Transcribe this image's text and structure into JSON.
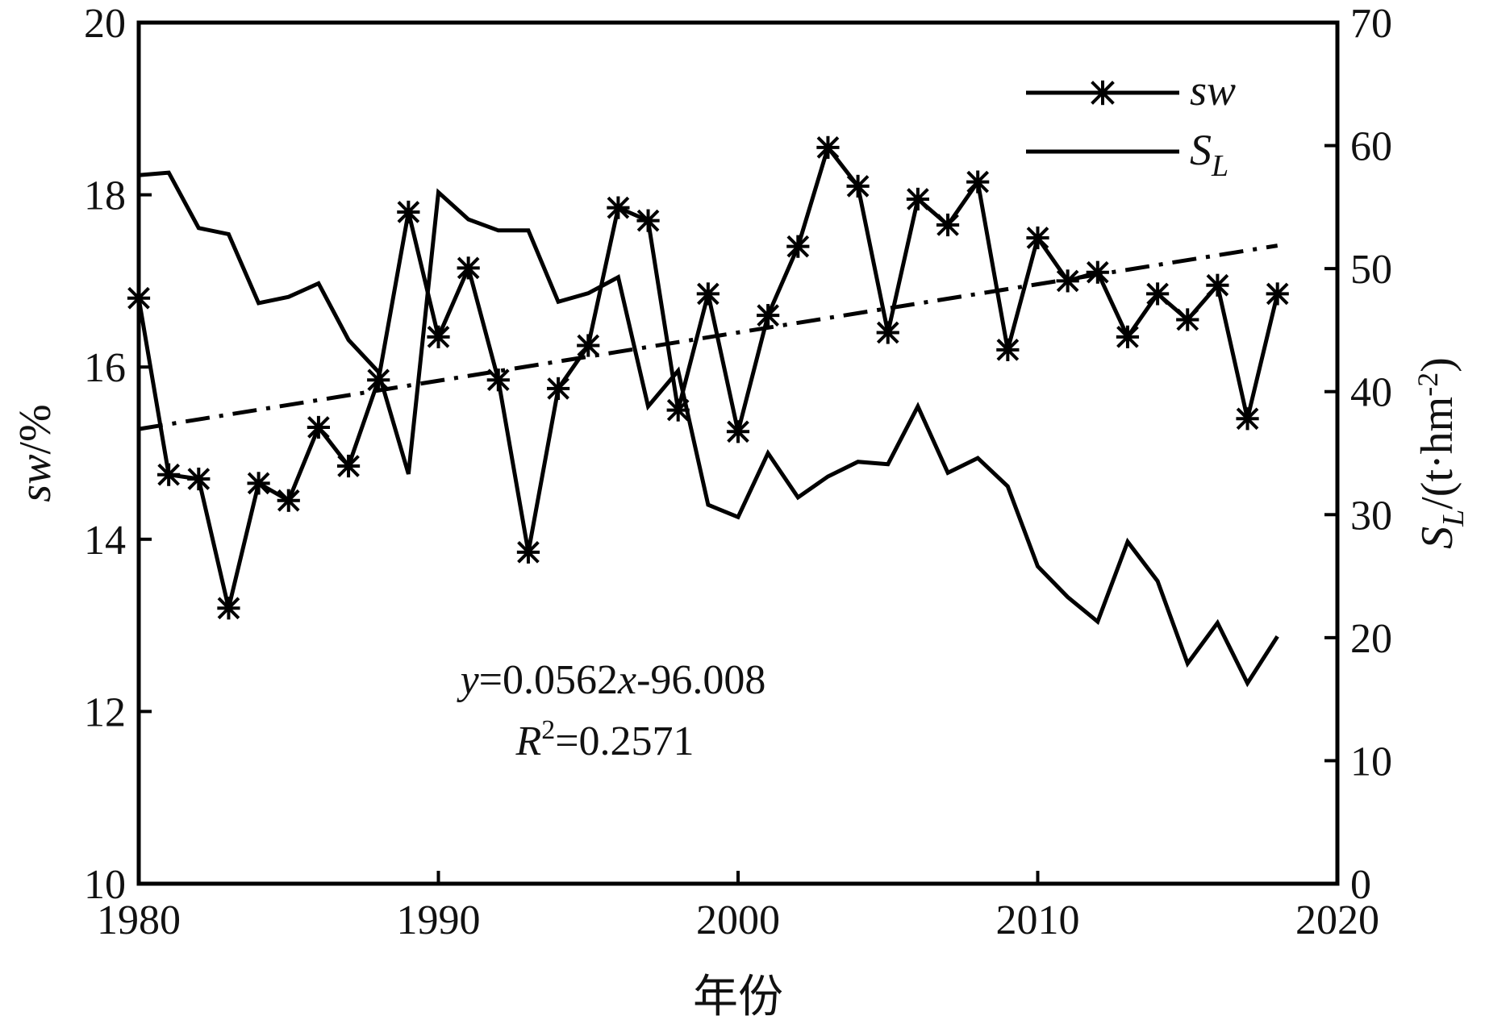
{
  "chart_data": {
    "type": "line",
    "xlabel": "年份",
    "ylabel_left": {
      "main": "sw",
      "rest": "/%"
    },
    "ylabel_right": {
      "main": "S",
      "sub": "L",
      "rest": "/(t·hm",
      "sup": "-2",
      "close": ")"
    },
    "xlim": [
      1980,
      2020
    ],
    "ylim_left": [
      10,
      20
    ],
    "ylim_right": [
      0,
      70
    ],
    "x_ticks": [
      "1980",
      "1990",
      "2000",
      "2010",
      "2020"
    ],
    "y_left_ticks": [
      "10",
      "12",
      "14",
      "16",
      "18",
      "20"
    ],
    "y_right_ticks": [
      "0",
      "10",
      "20",
      "30",
      "40",
      "50",
      "60",
      "70"
    ],
    "legend_position": "top-right",
    "legend": [
      {
        "label": "sw",
        "marker": "asterisk"
      },
      {
        "label": "S",
        "sub": "L",
        "marker": "none"
      }
    ],
    "series": [
      {
        "name": "sw",
        "axis": "left",
        "marker": "asterisk",
        "x": [
          1980,
          1981,
          1982,
          1983,
          1984,
          1985,
          1986,
          1987,
          1988,
          1989,
          1990,
          1991,
          1992,
          1993,
          1994,
          1995,
          1996,
          1997,
          1998,
          1999,
          2000,
          2001,
          2002,
          2003,
          2004,
          2005,
          2006,
          2007,
          2008,
          2009,
          2010,
          2011,
          2012,
          2013,
          2014,
          2015,
          2016,
          2017,
          2018
        ],
        "y": [
          16.8,
          14.75,
          14.7,
          13.2,
          14.65,
          14.45,
          15.3,
          14.85,
          15.85,
          17.8,
          16.35,
          17.15,
          15.85,
          13.85,
          15.75,
          16.25,
          17.85,
          17.7,
          15.5,
          16.85,
          15.25,
          16.6,
          17.4,
          18.55,
          18.1,
          16.4,
          17.95,
          17.65,
          18.15,
          16.2,
          17.5,
          17.0,
          17.1,
          16.35,
          16.85,
          16.55,
          16.95,
          15.4,
          16.85
        ]
      },
      {
        "name": "S_L",
        "axis": "right",
        "marker": "none",
        "x": [
          1980,
          1981,
          1982,
          1983,
          1984,
          1985,
          1986,
          1987,
          1988,
          1989,
          1990,
          1991,
          1992,
          1993,
          1994,
          1995,
          1996,
          1997,
          1998,
          1999,
          2000,
          2001,
          2002,
          2003,
          2004,
          2005,
          2006,
          2007,
          2008,
          2009,
          2010,
          2011,
          2012,
          2013,
          2014,
          2015,
          2016,
          2017,
          2018
        ],
        "y": [
          57.6,
          57.8,
          53.3,
          52.8,
          47.2,
          47.7,
          48.8,
          44.2,
          41.6,
          33.3,
          56.2,
          54.0,
          53.1,
          53.1,
          47.3,
          48.0,
          49.3,
          38.8,
          41.7,
          30.8,
          29.8,
          35.0,
          31.4,
          33.1,
          34.3,
          34.1,
          38.8,
          33.4,
          34.6,
          32.3,
          25.8,
          23.3,
          21.3,
          27.8,
          24.6,
          17.9,
          21.2,
          16.3,
          20.1
        ]
      },
      {
        "name": "trend",
        "axis": "left",
        "style": "dash-dot",
        "x": [
          1980,
          2018
        ],
        "y": [
          15.28,
          17.41
        ]
      }
    ],
    "annotations": {
      "equation": {
        "y": "y",
        "eq1": "=0.0562",
        "x": "x",
        "eq2": "-96.008"
      },
      "r2": {
        "R": "R",
        "sup": "2",
        "eq": "=0.2571"
      }
    }
  }
}
